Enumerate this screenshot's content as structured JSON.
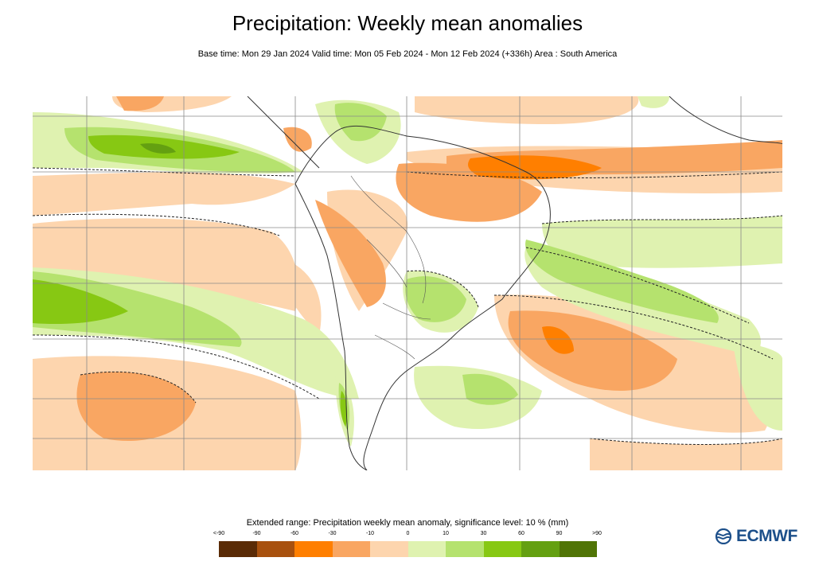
{
  "header": {
    "title": "Precipitation: Weekly mean anomalies",
    "subtitle": "Base time: Mon 29 Jan 2024 Valid time: Mon 05 Feb 2024 - Mon 12 Feb 2024 (+336h) Area : South America"
  },
  "legend": {
    "title": "Extended range: Precipitation weekly mean anomaly, significance level: 10 % (mm)",
    "ticks": [
      "<-90",
      "-90",
      "-60",
      "-30",
      "-10",
      "0",
      "10",
      "30",
      "60",
      "90",
      ">90"
    ],
    "colors": [
      "#5a2b06",
      "#a8510e",
      "#ff7f00",
      "#f9a662",
      "#fdd5ae",
      "#dff2b0",
      "#b5e26e",
      "#87c813",
      "#64a011",
      "#507406"
    ]
  },
  "logo": {
    "text": "ECMWF",
    "icon": "ecmwf-logo-icon"
  }
}
